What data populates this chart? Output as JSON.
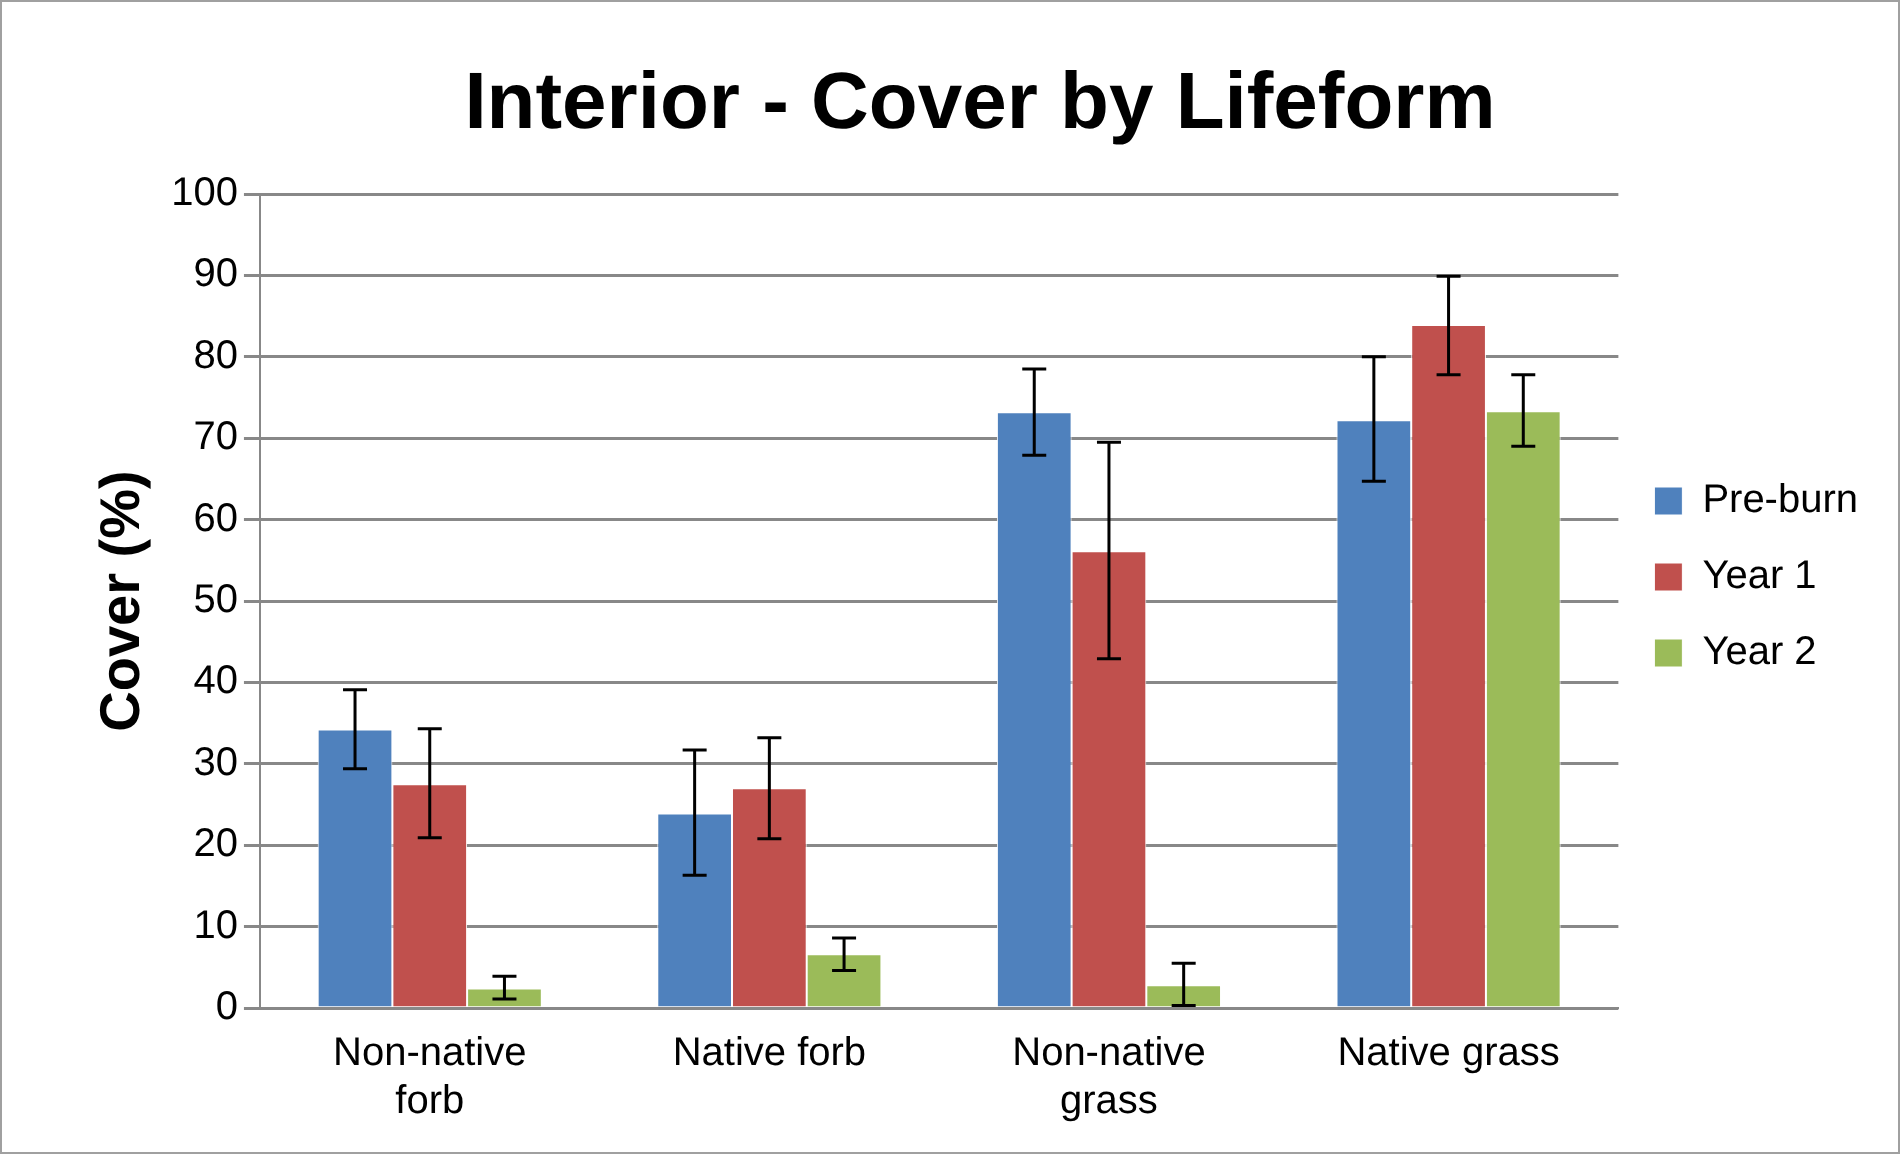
{
  "chart_data": {
    "type": "bar",
    "title": "Interior - Cover by Lifeform",
    "ylabel": "Cover (%)",
    "categories": [
      "Non-native forb",
      "Native forb",
      "Non-native grass",
      "Native grass"
    ],
    "series": [
      {
        "name": "Pre-burn",
        "color": "#4f81bd",
        "values": [
          34.2,
          23.9,
          73.2,
          72.2
        ],
        "errors": [
          [
            29.4,
            39.1
          ],
          [
            16.3,
            31.7
          ],
          [
            67.9,
            78.5
          ],
          [
            64.7,
            80.0
          ]
        ]
      },
      {
        "name": "Year 1",
        "color": "#c0504d",
        "values": [
          27.5,
          27.0,
          56.1,
          83.9
        ],
        "errors": [
          [
            20.9,
            34.3
          ],
          [
            20.8,
            33.2
          ],
          [
            42.9,
            69.5
          ],
          [
            77.8,
            89.9
          ]
        ]
      },
      {
        "name": "Year 2",
        "color": "#9bbb59",
        "values": [
          2.4,
          6.6,
          2.8,
          73.3
        ],
        "errors": [
          [
            1.1,
            3.9
          ],
          [
            4.6,
            8.6
          ],
          [
            0.3,
            5.5
          ],
          [
            69.0,
            77.8
          ]
        ]
      }
    ],
    "ylim": [
      0,
      100
    ],
    "yticks": [
      0,
      10,
      20,
      30,
      40,
      50,
      60,
      70,
      80,
      90,
      100
    ],
    "grid": "y",
    "legend": "right"
  }
}
